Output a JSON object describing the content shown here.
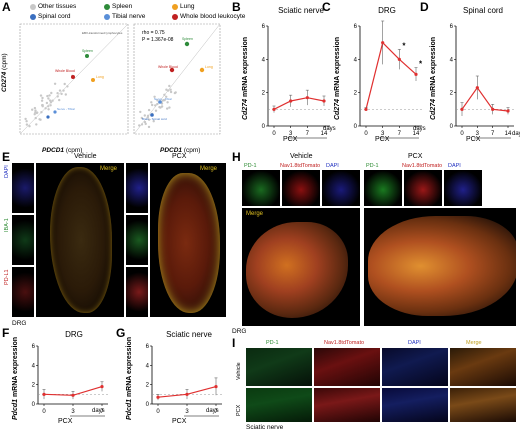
{
  "panels": {
    "A": {
      "letter": "A",
      "legend": [
        {
          "label": "Other tissues",
          "color": "#c8c8c8"
        },
        {
          "label": "Spleen",
          "color": "#2e8b3a"
        },
        {
          "label": "Lung",
          "color": "#f0a020"
        },
        {
          "label": "Spinal cord",
          "color": "#3a6fc0"
        },
        {
          "label": "Tibial nerve",
          "color": "#5a8fd8"
        },
        {
          "label": "Whole blood leukocyte",
          "color": "#c02020"
        }
      ],
      "left_xlabel": "PDCD1",
      "left_xunit": "(cpm)",
      "left_ylabel": "CD274",
      "left_yunit": "(cpm)",
      "right_xlabel": "PDCD1",
      "right_xunit": "(cpm)",
      "stat_rho": "rho = 0.75",
      "stat_p": "P = 1.367e-08",
      "points": {
        "spleen": "Spleen",
        "lung": "Lung",
        "whole_blood": "Whole Blood",
        "nerve_tibial": "Nerve - Tibial",
        "brain_spinal": "Brain - Spinal cord",
        "ebv": "EBV-transformed lymphocytes"
      }
    },
    "B": {
      "letter": "B",
      "title": "Sciatic nerve",
      "ylabel_gene": "Cd274",
      "ylabel_rest": " mRNA expression",
      "days_label": "days",
      "group_label": "PCX"
    },
    "C": {
      "letter": "C",
      "title": "DRG",
      "ylabel_gene": "Cd274",
      "ylabel_rest": " mRNA expression",
      "days_label": "days",
      "group_label": "PCX",
      "star": "*"
    },
    "D": {
      "letter": "D",
      "title": "Spinal cord",
      "ylabel_gene": "Cd274",
      "ylabel_rest": " mRNA expression",
      "days_label": "days",
      "group_label": "PCX"
    },
    "E": {
      "letter": "E",
      "vehicle": "Vehicle",
      "pcx": "PCX",
      "dapi": "DAPI",
      "iba1": "IBA-1",
      "pdl1": "PD-L1",
      "merge": "Merge",
      "tissue": "DRG"
    },
    "F": {
      "letter": "F",
      "title": "DRG",
      "ylabel_gene": "Pdcd1",
      "ylabel_rest": " mRNA expression",
      "days_label": "days",
      "group_label": "PCX"
    },
    "G": {
      "letter": "G",
      "title": "Sciatic nerve",
      "ylabel_gene": "Pdcd1",
      "ylabel_rest": " mRNA expression",
      "days_label": "days",
      "group_label": "PCX"
    },
    "H": {
      "letter": "H",
      "vehicle": "Vehicle",
      "pcx": "PCX",
      "pd1": "PD-1",
      "nav": "Nav1.8tdTomato",
      "dapi": "DAPI",
      "merge": "Merge",
      "tissue": "DRG"
    },
    "I": {
      "letter": "I",
      "pd1": "PD-1",
      "nav": "Nav1.8tdTomato",
      "dapi": "DAPI",
      "merge": "Merge",
      "vehicle": "Vehicle",
      "pcx": "PCX",
      "tissue": "Sciatic nerve"
    }
  },
  "chart_data": [
    {
      "panel": "B",
      "type": "line",
      "x": [
        0,
        3,
        7,
        14
      ],
      "y": [
        1.0,
        1.5,
        1.7,
        1.5
      ],
      "err": [
        0.2,
        0.35,
        0.45,
        0.3
      ],
      "ylim": [
        0,
        6
      ],
      "color": "#e03030"
    },
    {
      "panel": "C",
      "type": "line",
      "x": [
        0,
        3,
        7,
        14
      ],
      "y": [
        1.0,
        5.0,
        4.0,
        3.1
      ],
      "err": [
        0.1,
        1.3,
        0.6,
        0.4
      ],
      "ylim": [
        0,
        6
      ],
      "color": "#e03030"
    },
    {
      "panel": "D",
      "type": "line",
      "x": [
        0,
        3,
        7,
        14
      ],
      "y": [
        1.0,
        2.3,
        1.0,
        0.9
      ],
      "err": [
        0.4,
        0.7,
        0.3,
        0.2
      ],
      "ylim": [
        0,
        6
      ],
      "color": "#e03030"
    },
    {
      "panel": "F",
      "type": "line",
      "x": [
        0,
        3,
        7
      ],
      "y": [
        1.0,
        0.9,
        1.8
      ],
      "err": [
        0.5,
        0.4,
        0.5
      ],
      "ylim": [
        0,
        6
      ],
      "color": "#e03030"
    },
    {
      "panel": "G",
      "type": "line",
      "x": [
        0,
        3,
        7
      ],
      "y": [
        0.7,
        1.0,
        1.8
      ],
      "err": [
        0.3,
        0.5,
        0.9
      ],
      "ylim": [
        0,
        6
      ],
      "color": "#e03030"
    }
  ]
}
